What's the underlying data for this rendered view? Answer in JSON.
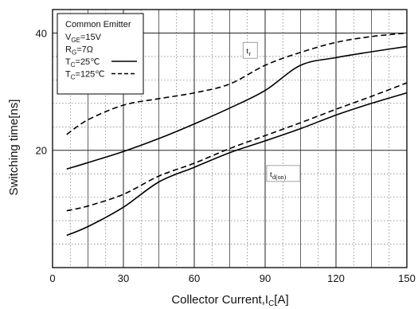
{
  "chart_data": {
    "type": "line",
    "title": "",
    "xlabel": "Collector Current,I",
    "xlabel_sub": "C",
    "xlabel_tail": "[A]",
    "ylabel": "Switching time[ns]",
    "xlim": [
      0,
      150
    ],
    "ylim": [
      0,
      44
    ],
    "xticks": [
      0,
      30,
      60,
      90,
      120,
      150
    ],
    "xtick_labels": [
      "0",
      "30",
      "60",
      "90",
      "120",
      "150"
    ],
    "yticks_labeled": [
      20,
      40
    ],
    "ytick_labels": [
      "20",
      "40"
    ],
    "grid": true,
    "grid_minor_style": "dotted",
    "legend": {
      "placement": "top-left",
      "title": "Common Emitter",
      "conditions": [
        {
          "main": "V",
          "sub": "GE",
          "rest": "=15V"
        },
        {
          "main": "R",
          "sub": "G",
          "rest": "=7Ω"
        }
      ],
      "entries": [
        {
          "main": "T",
          "sub": "C",
          "rest": "=25℃",
          "style": "solid"
        },
        {
          "main": "T",
          "sub": "C",
          "rest": "=125℃",
          "style": "dashed"
        }
      ]
    },
    "annotations": [
      {
        "main": "t",
        "sub": "r",
        "x": 82,
        "y": 36.5,
        "points_to": "tr"
      },
      {
        "main": "t",
        "sub": "d(on)",
        "x": 92,
        "y": 15.5,
        "points_to": "tdon"
      }
    ],
    "series": [
      {
        "id": "tr-125",
        "group": "tr",
        "style": "dashed",
        "x": [
          6,
          15,
          30,
          45,
          60,
          75,
          90,
          105,
          120,
          135,
          150
        ],
        "y": [
          22.7,
          25.2,
          27.7,
          28.8,
          29.8,
          31.3,
          34.5,
          36.7,
          38.4,
          39.4,
          40.0
        ]
      },
      {
        "id": "tr-25",
        "group": "tr",
        "style": "solid",
        "x": [
          6,
          15,
          30,
          45,
          60,
          75,
          90,
          105,
          120,
          135,
          150
        ],
        "y": [
          16.8,
          17.9,
          19.8,
          22.0,
          24.5,
          27.2,
          30.2,
          34.5,
          35.8,
          36.8,
          37.7
        ]
      },
      {
        "id": "tdon-125",
        "group": "tdon",
        "style": "dashed",
        "x": [
          6,
          15,
          30,
          45,
          60,
          75,
          90,
          105,
          120,
          135,
          150
        ],
        "y": [
          9.7,
          10.5,
          12.5,
          15.6,
          17.8,
          20.3,
          22.5,
          24.7,
          27.0,
          29.2,
          31.5
        ]
      },
      {
        "id": "tdon-25",
        "group": "tdon",
        "style": "solid",
        "x": [
          6,
          15,
          30,
          45,
          60,
          75,
          90,
          105,
          120,
          135,
          150
        ],
        "y": [
          5.5,
          7.0,
          10.3,
          14.6,
          17.1,
          19.6,
          21.6,
          23.7,
          26.0,
          28.0,
          29.8
        ]
      }
    ]
  }
}
